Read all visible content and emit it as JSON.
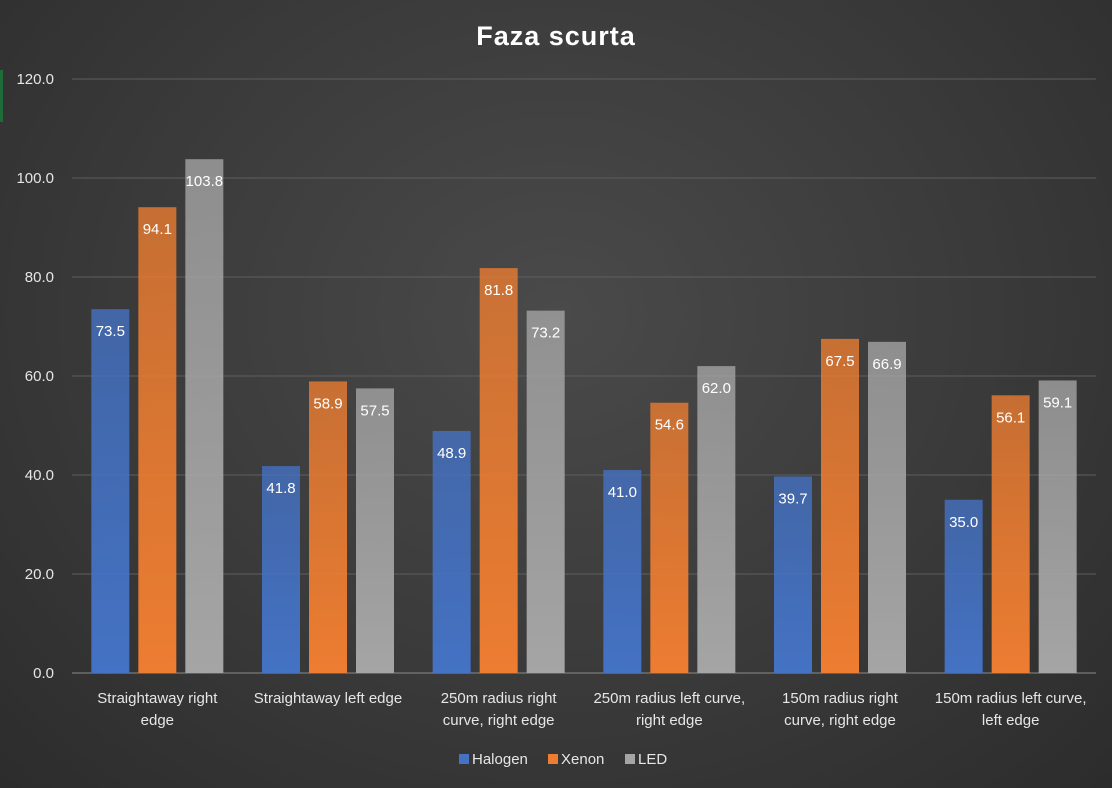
{
  "chart_data": {
    "type": "bar",
    "title": "Faza scurta",
    "xlabel": "",
    "ylabel": "",
    "ylim": [
      0,
      120
    ],
    "yticks": [
      "0.0",
      "20.0",
      "40.0",
      "60.0",
      "80.0",
      "100.0",
      "120.0"
    ],
    "grid": true,
    "legend_position": "bottom",
    "categories": [
      [
        "Straightaway right",
        "edge"
      ],
      [
        "Straightaway left edge"
      ],
      [
        "250m radius right",
        "curve, right edge"
      ],
      [
        "250m radius left curve,",
        "right edge"
      ],
      [
        "150m radius right",
        "curve, right edge"
      ],
      [
        "150m radius left curve,",
        "left edge"
      ]
    ],
    "series": [
      {
        "name": "Halogen",
        "color": "#4472c4",
        "values": [
          73.5,
          41.8,
          48.9,
          41.0,
          39.7,
          35.0
        ],
        "labels": [
          "73.5",
          "41.8",
          "48.9",
          "41.0",
          "39.7",
          "35.0"
        ]
      },
      {
        "name": "Xenon",
        "color": "#ed7d31",
        "values": [
          94.1,
          58.9,
          81.8,
          54.6,
          67.5,
          56.1
        ],
        "labels": [
          "94.1",
          "58.9",
          "81.8",
          "54.6",
          "67.5",
          "56.1"
        ]
      },
      {
        "name": "LED",
        "color": "#a5a5a5",
        "values": [
          103.8,
          57.5,
          73.2,
          62.0,
          66.9,
          59.1
        ],
        "labels": [
          "103.8",
          "57.5",
          "73.2",
          "62.0",
          "66.9",
          "59.1"
        ]
      }
    ]
  }
}
